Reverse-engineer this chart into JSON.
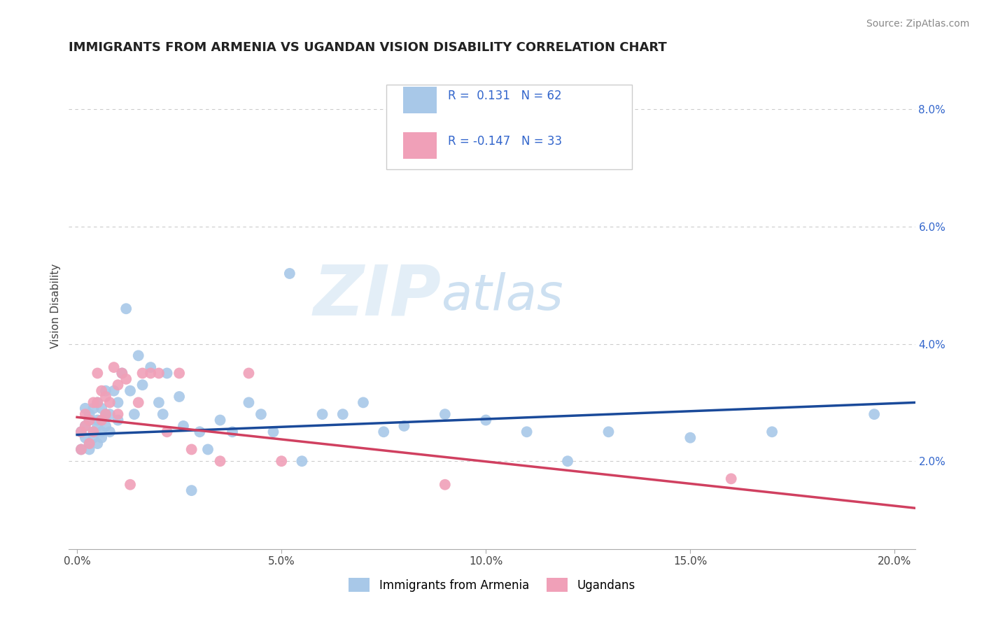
{
  "title": "IMMIGRANTS FROM ARMENIA VS UGANDAN VISION DISABILITY CORRELATION CHART",
  "source": "Source: ZipAtlas.com",
  "ylabel_text": "Vision Disability",
  "x_tick_labels": [
    "0.0%",
    "5.0%",
    "10.0%",
    "15.0%",
    "20.0%"
  ],
  "x_tick_vals": [
    0.0,
    0.05,
    0.1,
    0.15,
    0.2
  ],
  "y_tick_labels": [
    "2.0%",
    "4.0%",
    "6.0%",
    "8.0%"
  ],
  "y_tick_vals": [
    0.02,
    0.04,
    0.06,
    0.08
  ],
  "xlim": [
    -0.002,
    0.205
  ],
  "ylim": [
    0.005,
    0.088
  ],
  "legend1_label": "Immigrants from Armenia",
  "legend2_label": "Ugandans",
  "r1": 0.131,
  "n1": 62,
  "r2": -0.147,
  "n2": 33,
  "blue_color": "#a8c8e8",
  "pink_color": "#f0a0b8",
  "line_blue": "#1a4a9a",
  "line_pink": "#d04060",
  "blue_line_start_y": 0.0245,
  "blue_line_end_y": 0.03,
  "pink_line_start_y": 0.0275,
  "pink_line_end_y": 0.012,
  "blue_scatter_x": [
    0.001,
    0.001,
    0.002,
    0.002,
    0.002,
    0.003,
    0.003,
    0.003,
    0.003,
    0.004,
    0.004,
    0.004,
    0.005,
    0.005,
    0.005,
    0.005,
    0.006,
    0.006,
    0.006,
    0.007,
    0.007,
    0.007,
    0.008,
    0.008,
    0.009,
    0.01,
    0.01,
    0.011,
    0.012,
    0.013,
    0.014,
    0.015,
    0.016,
    0.018,
    0.02,
    0.021,
    0.022,
    0.025,
    0.026,
    0.028,
    0.03,
    0.032,
    0.035,
    0.038,
    0.042,
    0.045,
    0.048,
    0.052,
    0.055,
    0.06,
    0.065,
    0.07,
    0.075,
    0.08,
    0.09,
    0.1,
    0.11,
    0.12,
    0.13,
    0.15,
    0.17,
    0.195
  ],
  "blue_scatter_y": [
    0.025,
    0.022,
    0.026,
    0.024,
    0.029,
    0.023,
    0.027,
    0.022,
    0.028,
    0.025,
    0.024,
    0.029,
    0.026,
    0.023,
    0.027,
    0.03,
    0.025,
    0.029,
    0.024,
    0.028,
    0.026,
    0.032,
    0.025,
    0.028,
    0.032,
    0.027,
    0.03,
    0.035,
    0.046,
    0.032,
    0.028,
    0.038,
    0.033,
    0.036,
    0.03,
    0.028,
    0.035,
    0.031,
    0.026,
    0.015,
    0.025,
    0.022,
    0.027,
    0.025,
    0.03,
    0.028,
    0.025,
    0.052,
    0.02,
    0.028,
    0.028,
    0.03,
    0.025,
    0.026,
    0.028,
    0.027,
    0.025,
    0.02,
    0.025,
    0.024,
    0.025,
    0.028
  ],
  "pink_scatter_x": [
    0.001,
    0.001,
    0.002,
    0.002,
    0.003,
    0.003,
    0.004,
    0.004,
    0.005,
    0.005,
    0.006,
    0.006,
    0.007,
    0.007,
    0.008,
    0.009,
    0.01,
    0.01,
    0.011,
    0.012,
    0.013,
    0.015,
    0.016,
    0.018,
    0.02,
    0.022,
    0.025,
    0.028,
    0.035,
    0.042,
    0.05,
    0.09,
    0.16
  ],
  "pink_scatter_y": [
    0.025,
    0.022,
    0.028,
    0.026,
    0.027,
    0.023,
    0.03,
    0.025,
    0.035,
    0.03,
    0.032,
    0.027,
    0.028,
    0.031,
    0.03,
    0.036,
    0.033,
    0.028,
    0.035,
    0.034,
    0.016,
    0.03,
    0.035,
    0.035,
    0.035,
    0.025,
    0.035,
    0.022,
    0.02,
    0.035,
    0.02,
    0.016,
    0.017
  ]
}
